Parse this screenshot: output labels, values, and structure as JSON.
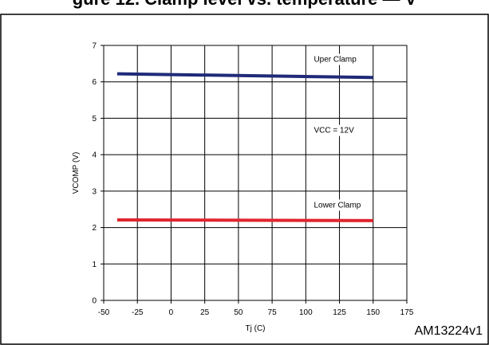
{
  "figure": {
    "title": "gure 12. Clamp level vs. temperature — V",
    "figure_id": "AM13224v1"
  },
  "chart_data": {
    "type": "line",
    "title": "",
    "xlabel": "Tj (C)",
    "ylabel": "VCOMP (V)",
    "xlim": [
      -50,
      175
    ],
    "ylim": [
      0,
      7
    ],
    "xticks": [
      -50,
      -25,
      0,
      25,
      50,
      75,
      100,
      125,
      150,
      175
    ],
    "yticks": [
      0,
      1,
      2,
      3,
      4,
      5,
      6,
      7
    ],
    "grid": true,
    "series": [
      {
        "name": "Uper Clamp",
        "color": "#1f2a78",
        "x": [
          -40,
          150
        ],
        "y": [
          6.22,
          6.12
        ]
      },
      {
        "name": "Lower Clamp",
        "color": "#e0262f",
        "x": [
          -40,
          150
        ],
        "y": [
          2.21,
          2.19
        ]
      }
    ],
    "annotations": [
      {
        "text": "Uper Clamp",
        "x": 106,
        "y": 6.55
      },
      {
        "text": "VCC = 12V",
        "x": 106,
        "y": 4.6
      },
      {
        "text": "Lower Clamp",
        "x": 106,
        "y": 2.55
      }
    ]
  }
}
